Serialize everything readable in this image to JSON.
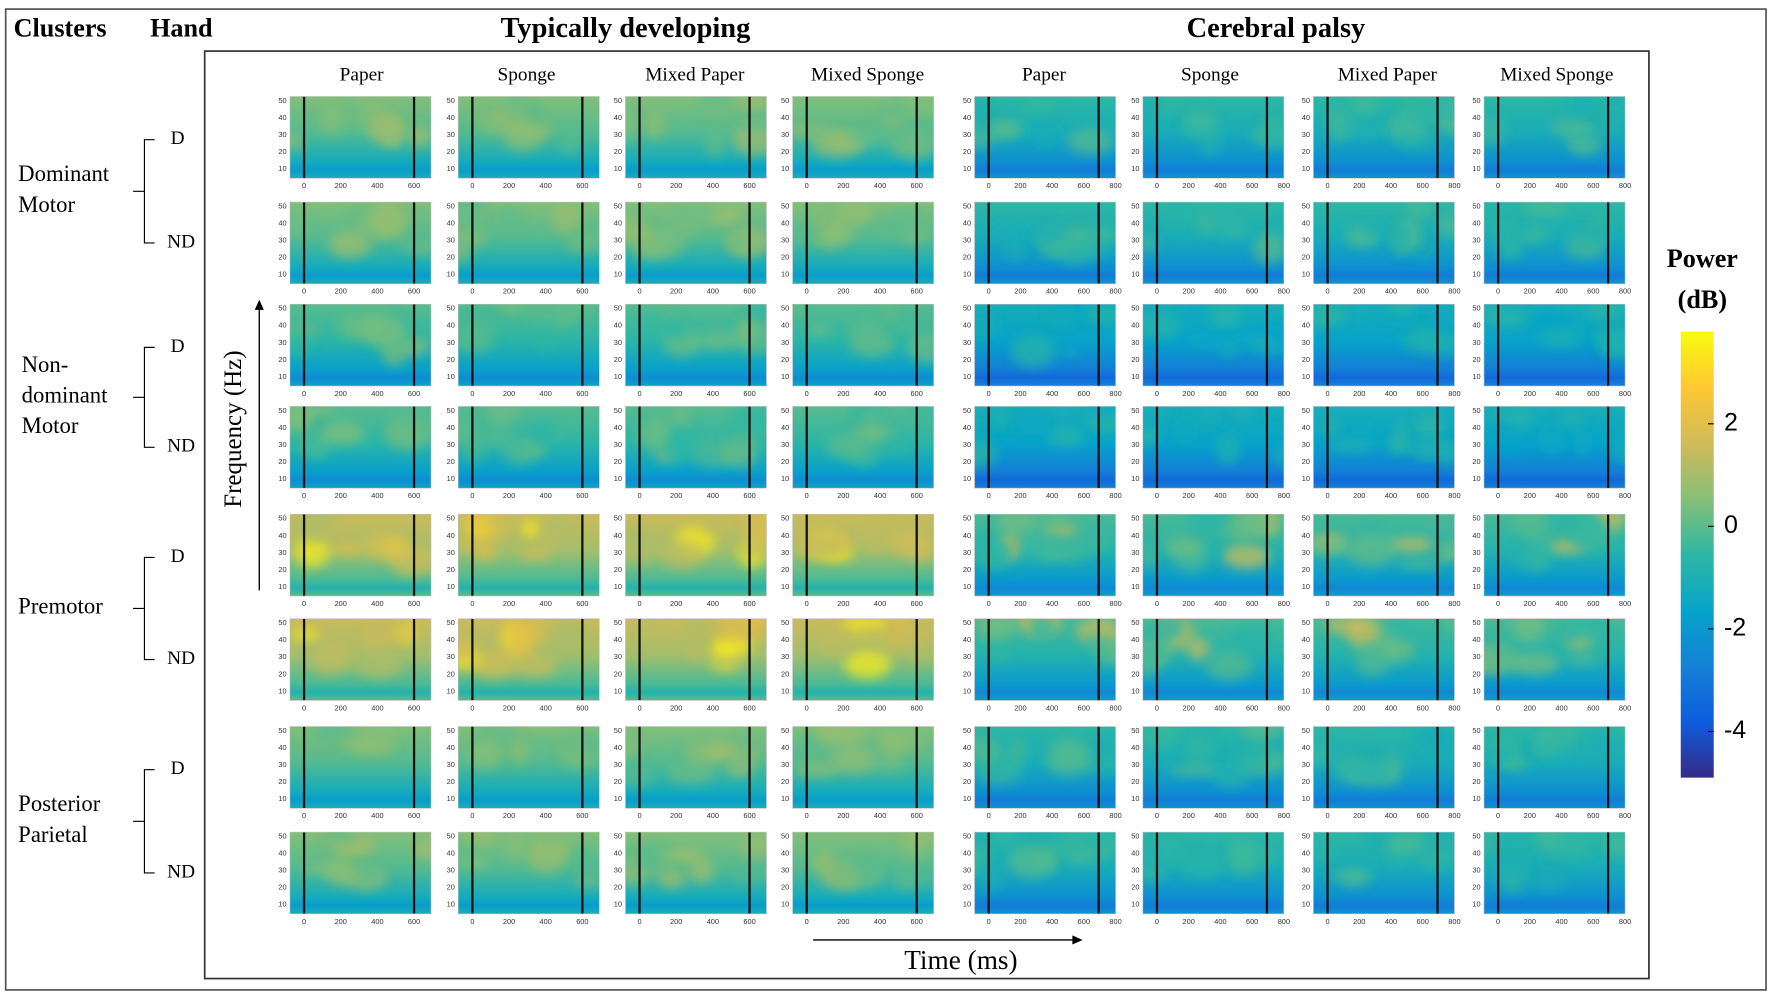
{
  "header": {
    "clusters": "Clusters",
    "hand": "Hand",
    "groups": [
      "Typically developing",
      "Cerebral palsy"
    ]
  },
  "conditions": [
    "Paper",
    "Sponge",
    "Mixed Paper",
    "Mixed Sponge"
  ],
  "clusters": [
    {
      "label": [
        "Dominant",
        "Motor"
      ],
      "hands": [
        "D",
        "ND"
      ]
    },
    {
      "label": [
        "Non-",
        "dominant",
        "Motor"
      ],
      "hands": [
        "D",
        "ND"
      ]
    },
    {
      "label": [
        "Premotor"
      ],
      "hands": [
        "D",
        "ND"
      ]
    },
    {
      "label": [
        "Posterior",
        "Parietal"
      ],
      "hands": [
        "D",
        "ND"
      ]
    }
  ],
  "axes": {
    "y_label": "Frequency (Hz)",
    "x_label": "Time (ms)",
    "yticks": [
      10,
      20,
      30,
      40,
      50
    ],
    "xticks": [
      [
        0,
        200,
        400,
        600
      ],
      [
        0,
        200,
        400,
        600,
        800
      ]
    ]
  },
  "colorbar": {
    "label": [
      "Power",
      "(dB)"
    ],
    "lim": [
      -4.9,
      3.8
    ],
    "ticks": [
      2,
      0,
      -2,
      -4
    ]
  }
}
